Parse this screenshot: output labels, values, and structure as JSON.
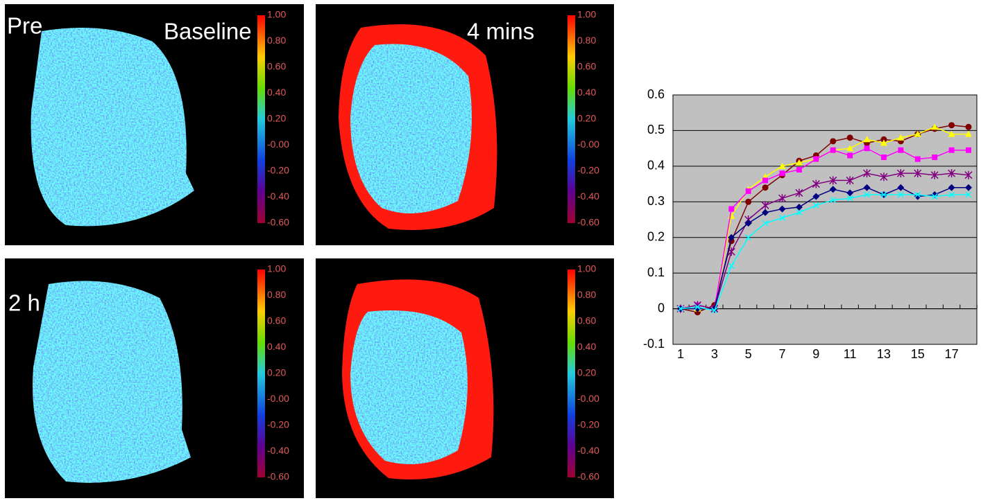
{
  "image_labels": [
    "Pre",
    "Baseline",
    "4 mins",
    "2 h"
  ],
  "colorbar_ticks": [
    {
      "value": 1.0,
      "label": "1.00"
    },
    {
      "value": 0.8,
      "label": "0.80"
    },
    {
      "value": 0.6,
      "label": "0.60"
    },
    {
      "value": 0.4,
      "label": "0.40"
    },
    {
      "value": 0.2,
      "label": "0.20"
    },
    {
      "value": 0,
      "label": "-0.00"
    },
    {
      "value": -0.2,
      "label": "-0.20"
    },
    {
      "value": -0.4,
      "label": "-0.40"
    },
    {
      "value": -0.6,
      "label": "-0.60"
    }
  ],
  "chart_data": {
    "type": "line",
    "categories": [
      "1",
      null,
      "3",
      null,
      "5",
      null,
      "7",
      null,
      "9",
      null,
      "11",
      null,
      "13",
      null,
      "15",
      null,
      "17",
      null
    ],
    "series": [
      {
        "color": "#800000",
        "marker": "circle",
        "values": [
          0,
          -0.01,
          0.01,
          0.19,
          0.3,
          0.34,
          0.375,
          0.415,
          0.43,
          0.47,
          0.48,
          0.465,
          0.475,
          0.47,
          0.49,
          0.505,
          0.515,
          0.51
        ]
      },
      {
        "color": "#ffff00",
        "marker": "triangle",
        "values": [
          0,
          0,
          0,
          0.26,
          0.335,
          0.37,
          0.4,
          0.41,
          0.42,
          0.445,
          0.45,
          0.475,
          0.465,
          0.48,
          0.49,
          0.51,
          0.49,
          0.49
        ]
      },
      {
        "color": "#ff00ff",
        "marker": "square",
        "values": [
          0,
          0.01,
          0,
          0.28,
          0.33,
          0.36,
          0.38,
          0.39,
          0.42,
          0.445,
          0.43,
          0.45,
          0.425,
          0.445,
          0.42,
          0.425,
          0.445,
          0.445
        ]
      },
      {
        "color": "#800080",
        "marker": "star",
        "values": [
          0,
          0.01,
          0,
          0.16,
          0.25,
          0.29,
          0.31,
          0.325,
          0.35,
          0.36,
          0.36,
          0.38,
          0.37,
          0.38,
          0.38,
          0.375,
          0.38,
          0.375
        ]
      },
      {
        "color": "#000080",
        "marker": "diamond",
        "values": [
          0,
          0,
          0,
          0.2,
          0.24,
          0.27,
          0.28,
          0.285,
          0.315,
          0.335,
          0.325,
          0.34,
          0.32,
          0.34,
          0.315,
          0.32,
          0.34,
          0.34
        ]
      },
      {
        "color": "#00ffff",
        "marker": "x",
        "values": [
          0,
          0.005,
          -0.005,
          0.12,
          0.2,
          0.24,
          0.255,
          0.27,
          0.29,
          0.305,
          0.31,
          0.32,
          0.32,
          0.32,
          0.32,
          0.315,
          0.32,
          0.32
        ]
      }
    ],
    "ylim": [
      -0.1,
      0.6
    ],
    "yticks": [
      -0.1,
      0,
      0.1,
      0.2,
      0.3,
      0.4,
      0.5,
      0.6
    ],
    "grid": true,
    "background": "#c0c0c0"
  }
}
